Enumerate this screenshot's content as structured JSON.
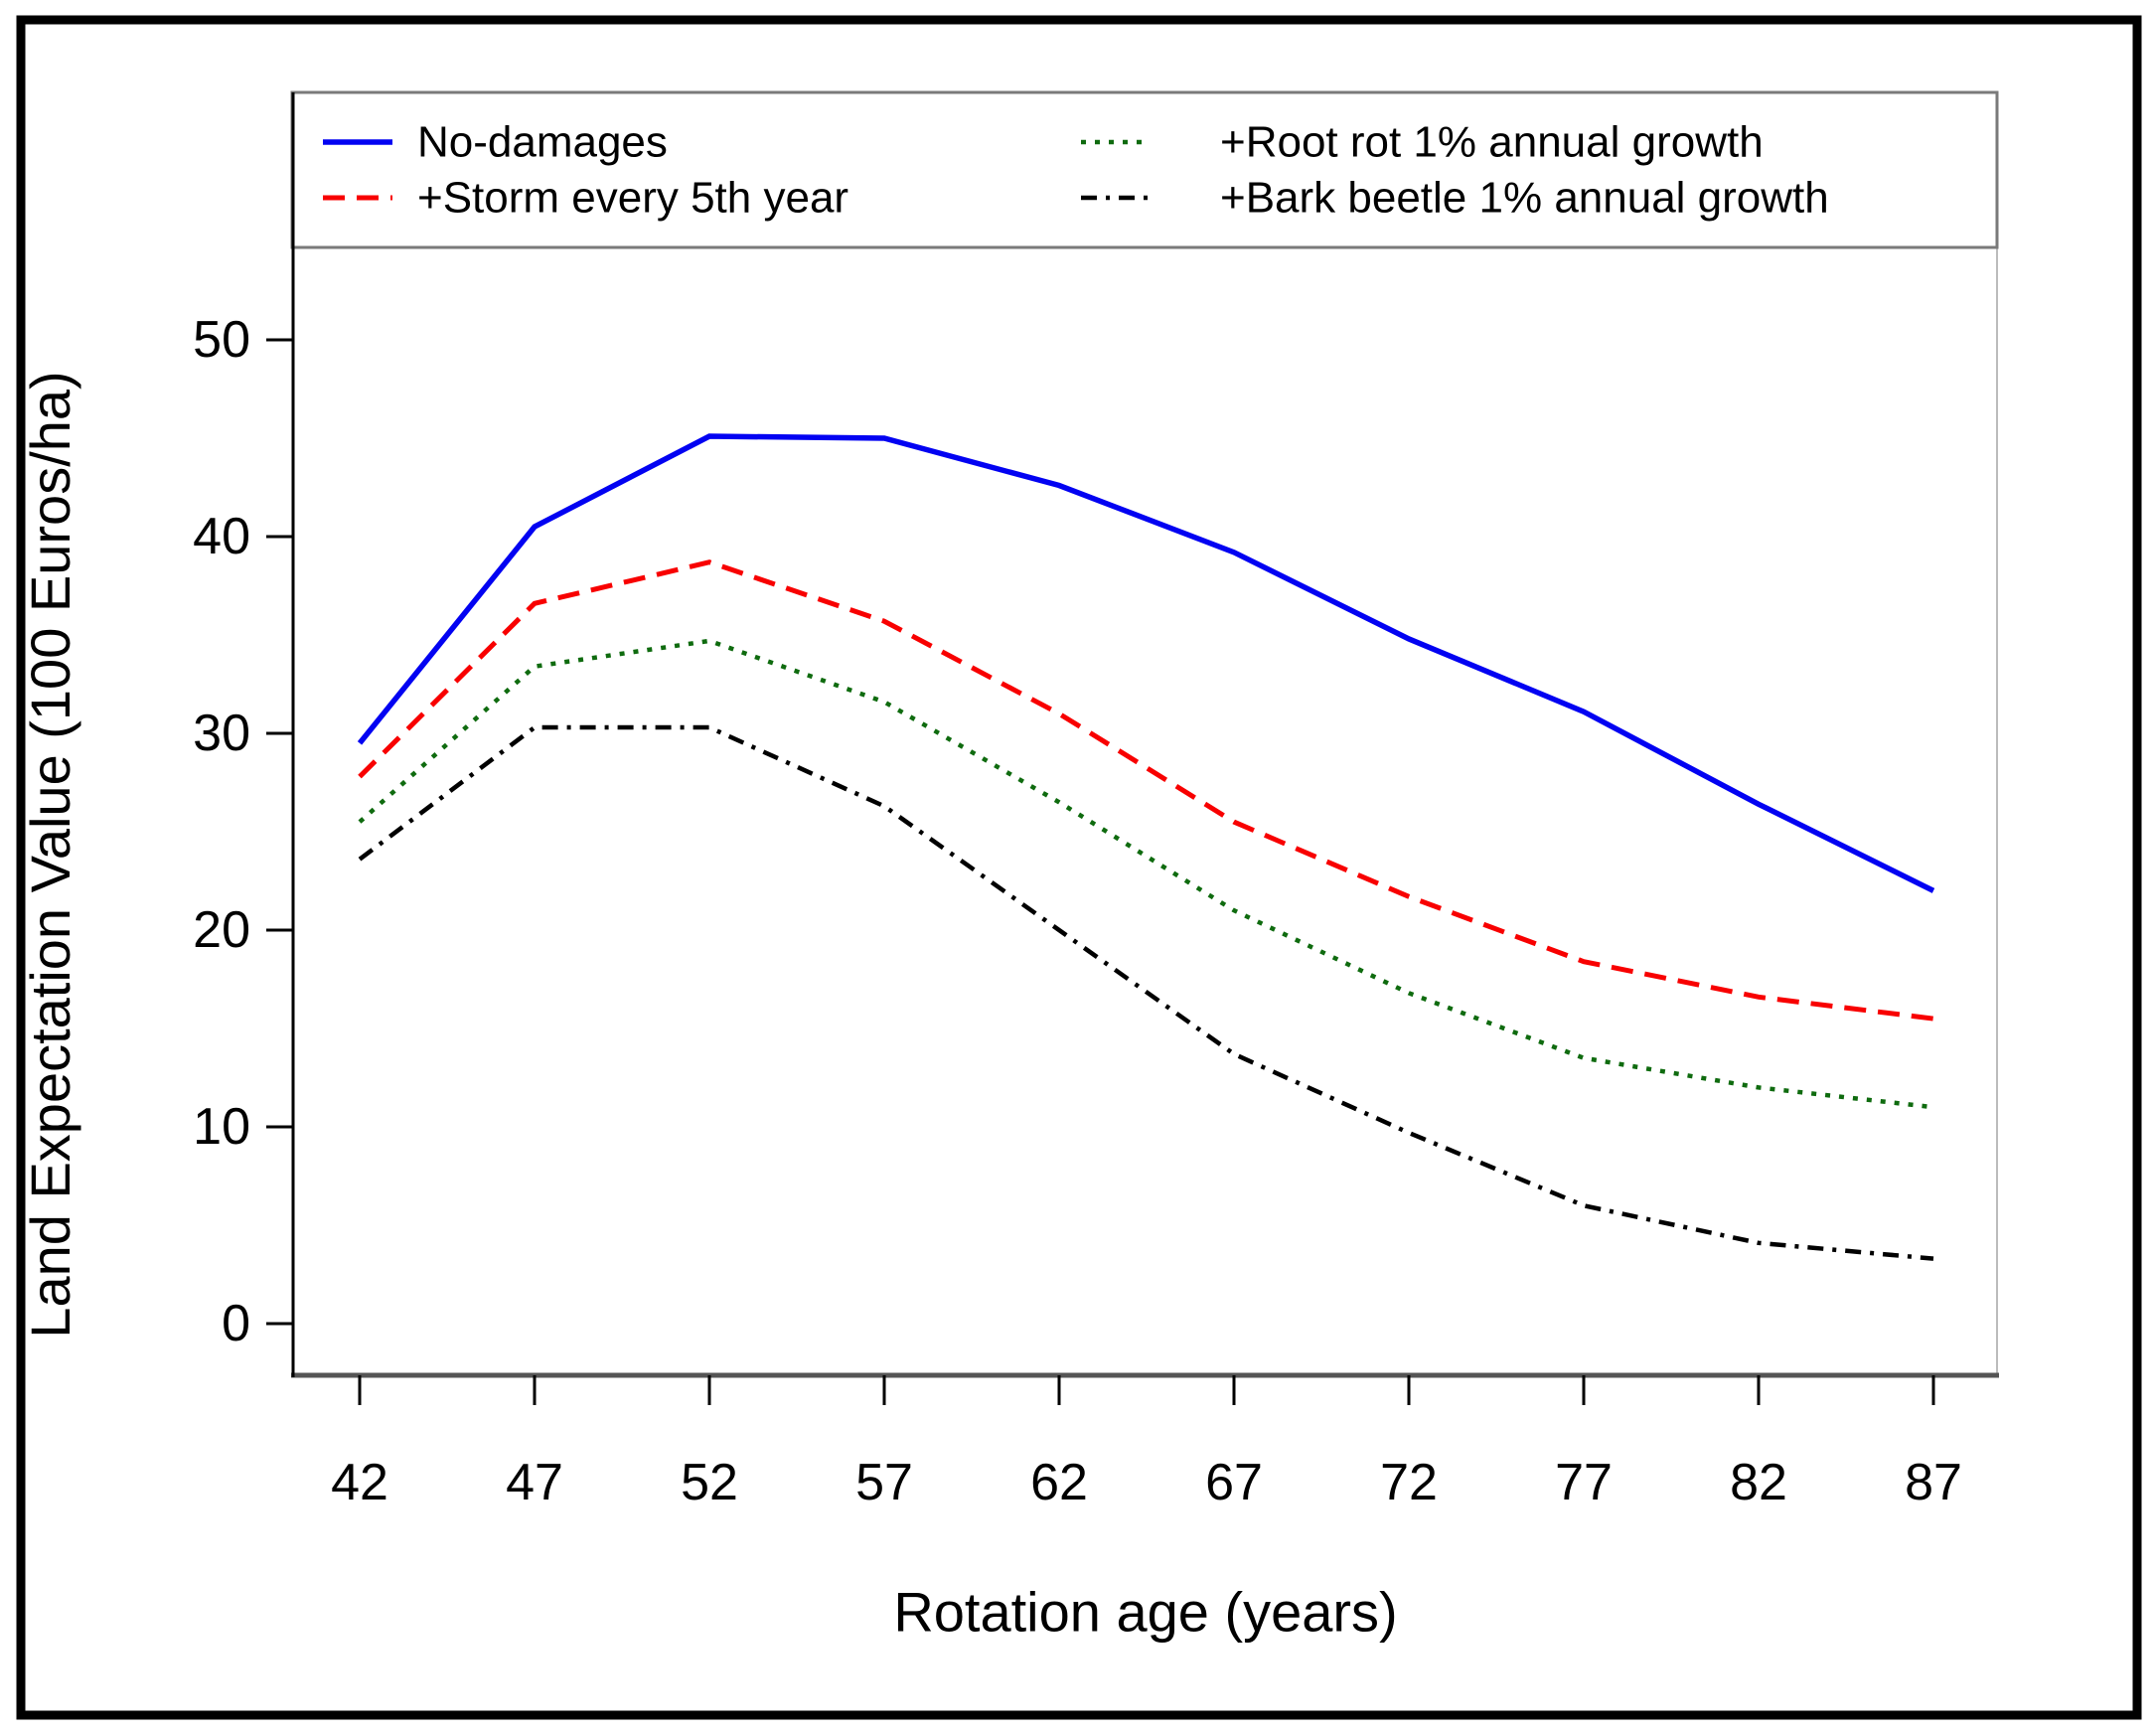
{
  "figure": {
    "background": "#ffffff",
    "outer_border_color": "#000000",
    "axis_color": "#000000",
    "box_color": "#7a7a7a",
    "bottom_axis_color": "#555555",
    "tick_label_color": "#000000"
  },
  "chart_data": {
    "type": "line",
    "title": "",
    "xlabel": "Rotation age (years)",
    "ylabel": "Land Expectation Value (100 Euros/ha)",
    "x": [
      42,
      47,
      52,
      57,
      62,
      67,
      72,
      77,
      82,
      87
    ],
    "x_ticks": [
      "42",
      "47",
      "52",
      "57",
      "62",
      "67",
      "72",
      "77",
      "82",
      "87"
    ],
    "y_ticks": [
      "0",
      "10",
      "20",
      "30",
      "40",
      "50"
    ],
    "y_tick_values": [
      0,
      10,
      20,
      30,
      40,
      50
    ],
    "xlim": [
      42,
      87
    ],
    "ylim": [
      0,
      55
    ],
    "grid": false,
    "legend_position": "top-inside-horizontal",
    "series": [
      {
        "name": "No-damages",
        "color": "#0202f2",
        "line_style": "solid",
        "values": [
          29.5,
          40.5,
          45.1,
          45.0,
          42.6,
          39.2,
          34.8,
          31.1,
          26.4,
          22.0
        ]
      },
      {
        "name": "+Storm every 5th year",
        "color": "#f80000",
        "line_style": "dashed",
        "values": [
          27.8,
          36.6,
          38.7,
          35.7,
          31.0,
          25.5,
          21.7,
          18.4,
          16.6,
          15.5
        ]
      },
      {
        "name": "+Root rot 1% annual growth",
        "color": "#0f6b0f",
        "line_style": "dotted",
        "values": [
          25.5,
          33.4,
          34.7,
          31.6,
          26.5,
          21.0,
          16.8,
          13.5,
          12.0,
          11.0
        ]
      },
      {
        "name": "+Bark beetle 1% annual growth",
        "color": "#000000",
        "line_style": "dashdot",
        "values": [
          23.6,
          30.3,
          30.3,
          26.3,
          20.0,
          13.7,
          9.7,
          6.0,
          4.1,
          3.3
        ]
      }
    ]
  }
}
